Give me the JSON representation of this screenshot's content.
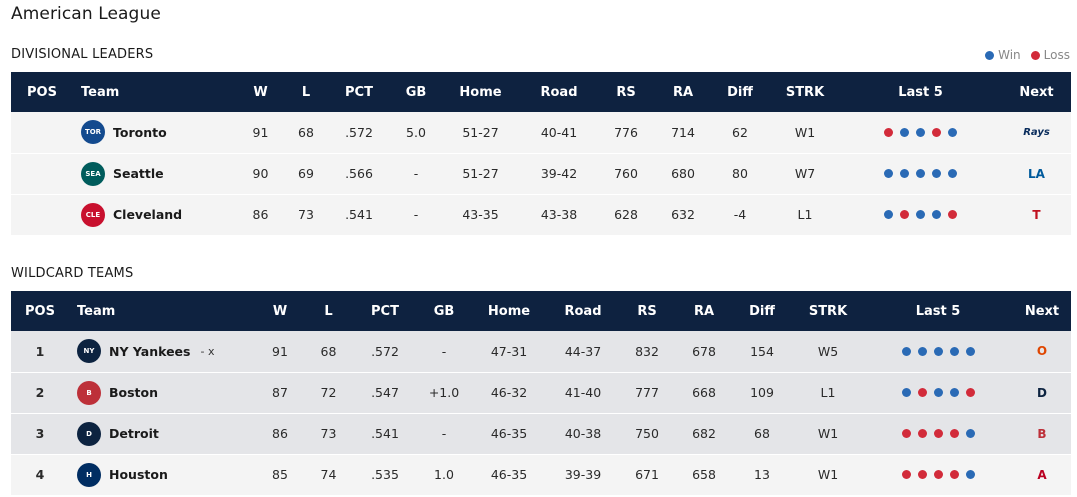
{
  "page": {
    "league_title": "American League",
    "colors": {
      "header_bg": "#0e2240",
      "win": "#2a6ab5",
      "loss": "#d22b3a",
      "row_light": "#f4f4f4",
      "row_dark": "#e4e5e8"
    }
  },
  "legend": {
    "win_label": "Win",
    "loss_label": "Loss"
  },
  "columns": {
    "pos": "POS",
    "team": "Team",
    "w": "W",
    "l": "L",
    "pct": "PCT",
    "gb": "GB",
    "home": "Home",
    "road": "Road",
    "rs": "RS",
    "ra": "RA",
    "diff": "Diff",
    "strk": "STRK",
    "last5": "Last 5",
    "next": "Next"
  },
  "divisional": {
    "title": "DIVISIONAL LEADERS",
    "rows": [
      {
        "pos": "",
        "team": "Toronto",
        "mark": "",
        "logo_icon": "blue-jays-logo-icon",
        "logo_color": "#134a8e",
        "logo_text": "TOR",
        "w": "91",
        "l": "68",
        "pct": ".572",
        "gb": "5.0",
        "home": "51-27",
        "road": "40-41",
        "rs": "776",
        "ra": "714",
        "diff": "62",
        "strk": "W1",
        "last5": [
          "L",
          "W",
          "W",
          "L",
          "W"
        ],
        "next_icon": "rays-logo-icon",
        "next_text": "Rays",
        "next_color": "#092c5c"
      },
      {
        "pos": "",
        "team": "Seattle",
        "mark": "",
        "logo_icon": "mariners-logo-icon",
        "logo_color": "#005c5c",
        "logo_text": "SEA",
        "w": "90",
        "l": "69",
        "pct": ".566",
        "gb": "-",
        "home": "51-27",
        "road": "39-42",
        "rs": "760",
        "ra": "680",
        "diff": "80",
        "strk": "W7",
        "last5": [
          "W",
          "W",
          "W",
          "W",
          "W"
        ],
        "next_icon": "dodgers-logo-icon",
        "next_text": "LA",
        "next_color": "#005a9c"
      },
      {
        "pos": "",
        "team": "Cleveland",
        "mark": "",
        "logo_icon": "guardians-logo-icon",
        "logo_color": "#c8102e",
        "logo_text": "CLE",
        "w": "86",
        "l": "73",
        "pct": ".541",
        "gb": "-",
        "home": "43-35",
        "road": "43-38",
        "rs": "628",
        "ra": "632",
        "diff": "-4",
        "strk": "L1",
        "last5": [
          "W",
          "L",
          "W",
          "W",
          "L"
        ],
        "next_icon": "rangers-logo-icon",
        "next_text": "T",
        "next_color": "#c0111f"
      }
    ]
  },
  "wildcard": {
    "title": "WILDCARD TEAMS",
    "rows": [
      {
        "pos": "1",
        "team": "NY Yankees",
        "mark": "- x",
        "logo_icon": "yankees-logo-icon",
        "logo_color": "#0c2340",
        "logo_text": "NY",
        "w": "91",
        "l": "68",
        "pct": ".572",
        "gb": "-",
        "home": "47-31",
        "road": "44-37",
        "rs": "832",
        "ra": "678",
        "diff": "154",
        "strk": "W5",
        "last5": [
          "W",
          "W",
          "W",
          "W",
          "W"
        ],
        "next_icon": "orioles-logo-icon",
        "next_text": "O",
        "next_color": "#df4601"
      },
      {
        "pos": "2",
        "team": "Boston",
        "mark": "",
        "logo_icon": "red-sox-logo-icon",
        "logo_color": "#bd3039",
        "logo_text": "B",
        "w": "87",
        "l": "72",
        "pct": ".547",
        "gb": "+1.0",
        "home": "46-32",
        "road": "41-40",
        "rs": "777",
        "ra": "668",
        "diff": "109",
        "strk": "L1",
        "last5": [
          "W",
          "L",
          "W",
          "W",
          "L"
        ],
        "next_icon": "tigers-logo-icon",
        "next_text": "D",
        "next_color": "#0c2340"
      },
      {
        "pos": "3",
        "team": "Detroit",
        "mark": "",
        "logo_icon": "tigers-logo-icon",
        "logo_color": "#0c2340",
        "logo_text": "D",
        "w": "86",
        "l": "73",
        "pct": ".541",
        "gb": "-",
        "home": "46-35",
        "road": "40-38",
        "rs": "750",
        "ra": "682",
        "diff": "68",
        "strk": "W1",
        "last5": [
          "L",
          "L",
          "L",
          "L",
          "W"
        ],
        "next_icon": "red-sox-logo-icon",
        "next_text": "B",
        "next_color": "#bd3039"
      },
      {
        "pos": "4",
        "team": "Houston",
        "mark": "",
        "logo_icon": "astros-logo-icon",
        "logo_color": "#002d62",
        "logo_text": "H",
        "w": "85",
        "l": "74",
        "pct": ".535",
        "gb": "1.0",
        "home": "46-35",
        "road": "39-39",
        "rs": "671",
        "ra": "658",
        "diff": "13",
        "strk": "W1",
        "last5": [
          "L",
          "L",
          "L",
          "L",
          "W"
        ],
        "next_icon": "angels-logo-icon",
        "next_text": "A",
        "next_color": "#ba0021"
      }
    ]
  }
}
